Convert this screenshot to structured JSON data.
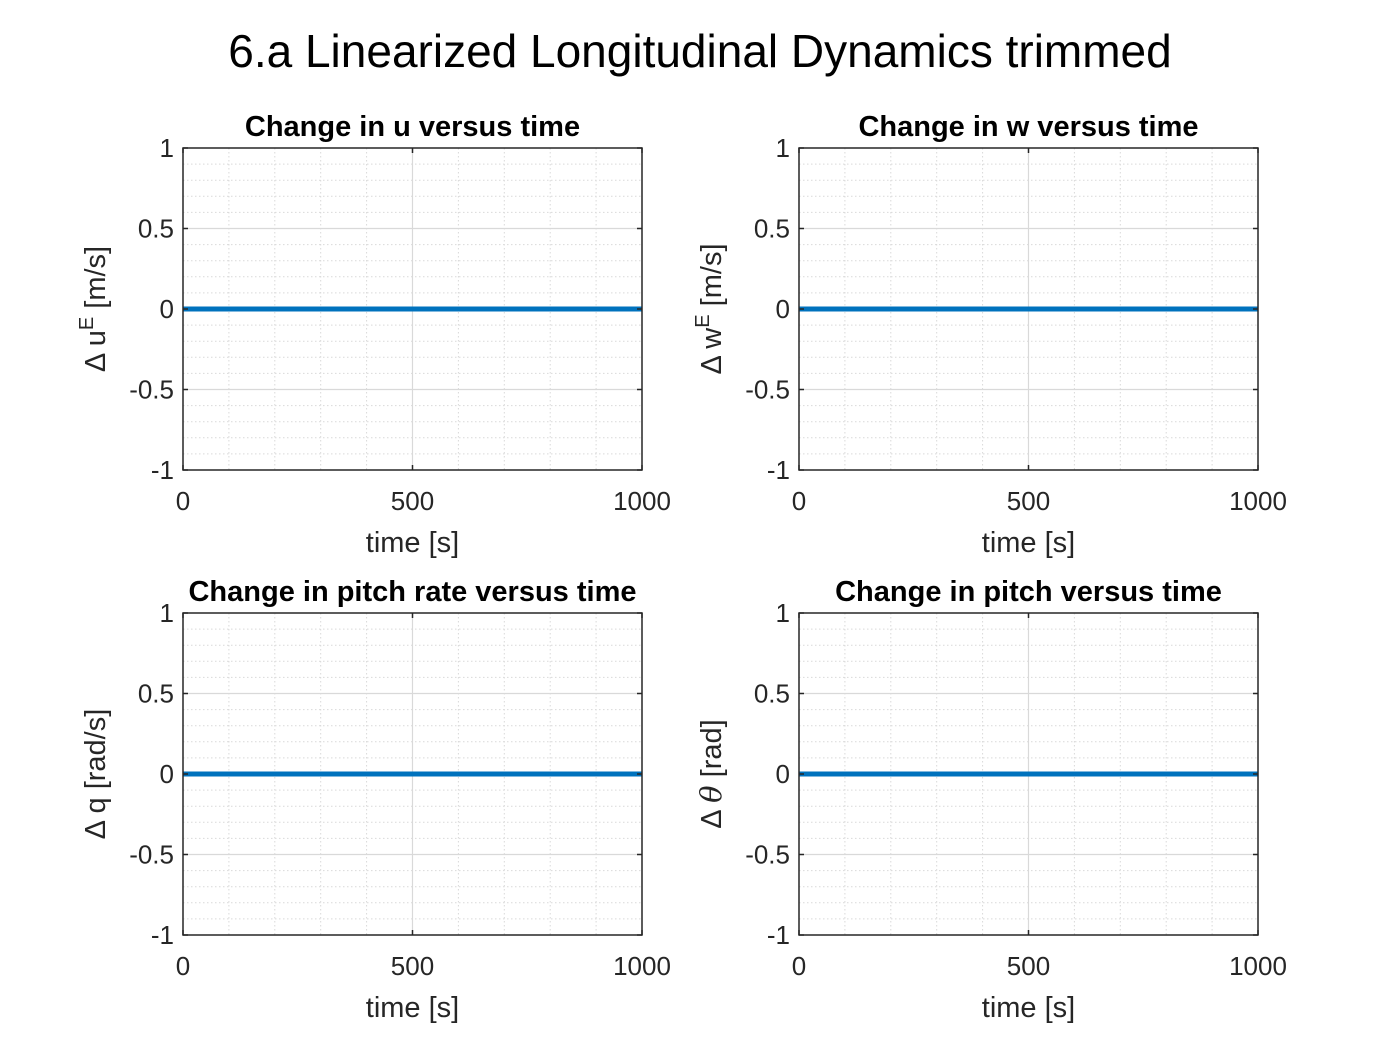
{
  "figure": {
    "title": "6.a Linearized Longitudinal Dynamics trimmed",
    "colors": {
      "line": "#0072BD",
      "axes": "#262626",
      "major_grid": "#d9d9d9",
      "minor_grid": "#d9d9d9",
      "background": "#ffffff"
    }
  },
  "chart_data": [
    {
      "type": "line",
      "title": "Change in u versus time",
      "xlabel": "time [s]",
      "ylabel": {
        "prefix": "Δ u",
        "sup": "E",
        "suffix": " [m/s]",
        "italic": false
      },
      "xlim": [
        0,
        1000
      ],
      "ylim": [
        -1,
        1
      ],
      "xticks": [
        0,
        500,
        1000
      ],
      "yticks": [
        -1,
        -0.5,
        0,
        0.5,
        1
      ],
      "xtick_labels": [
        "0",
        "500",
        "1000"
      ],
      "ytick_labels": [
        "-1",
        "-0.5",
        "0",
        "0.5",
        "1"
      ],
      "grid": true,
      "minor_grid": true,
      "series": [
        {
          "x": [
            0,
            1000
          ],
          "y": [
            0,
            0
          ]
        }
      ]
    },
    {
      "type": "line",
      "title": "Change in w versus time",
      "xlabel": "time [s]",
      "ylabel": {
        "prefix": "Δ w",
        "sup": "E",
        "suffix": " [m/s]",
        "italic": false
      },
      "xlim": [
        0,
        1000
      ],
      "ylim": [
        -1,
        1
      ],
      "xticks": [
        0,
        500,
        1000
      ],
      "yticks": [
        -1,
        -0.5,
        0,
        0.5,
        1
      ],
      "xtick_labels": [
        "0",
        "500",
        "1000"
      ],
      "ytick_labels": [
        "-1",
        "-0.5",
        "0",
        "0.5",
        "1"
      ],
      "grid": true,
      "minor_grid": true,
      "series": [
        {
          "x": [
            0,
            1000
          ],
          "y": [
            0,
            0
          ]
        }
      ]
    },
    {
      "type": "line",
      "title": "Change in pitch rate versus time",
      "xlabel": "time [s]",
      "ylabel": {
        "prefix": "Δ q",
        "sup": "",
        "suffix": " [rad/s]",
        "italic": false
      },
      "xlim": [
        0,
        1000
      ],
      "ylim": [
        -1,
        1
      ],
      "xticks": [
        0,
        500,
        1000
      ],
      "yticks": [
        -1,
        -0.5,
        0,
        0.5,
        1
      ],
      "xtick_labels": [
        "0",
        "500",
        "1000"
      ],
      "ytick_labels": [
        "-1",
        "-0.5",
        "0",
        "0.5",
        "1"
      ],
      "grid": true,
      "minor_grid": true,
      "series": [
        {
          "x": [
            0,
            1000
          ],
          "y": [
            0,
            0
          ]
        }
      ]
    },
    {
      "type": "line",
      "title": "Change in pitch versus time",
      "xlabel": "time [s]",
      "ylabel": {
        "prefix": "Δ ",
        "symbol": "θ",
        "suffix": " [rad]",
        "italic": true
      },
      "xlim": [
        0,
        1000
      ],
      "ylim": [
        -1,
        1
      ],
      "xticks": [
        0,
        500,
        1000
      ],
      "yticks": [
        -1,
        -0.5,
        0,
        0.5,
        1
      ],
      "xtick_labels": [
        "0",
        "500",
        "1000"
      ],
      "ytick_labels": [
        "-1",
        "-0.5",
        "0",
        "0.5",
        "1"
      ],
      "grid": true,
      "minor_grid": true,
      "series": [
        {
          "x": [
            0,
            1000
          ],
          "y": [
            0,
            0
          ]
        }
      ]
    }
  ]
}
